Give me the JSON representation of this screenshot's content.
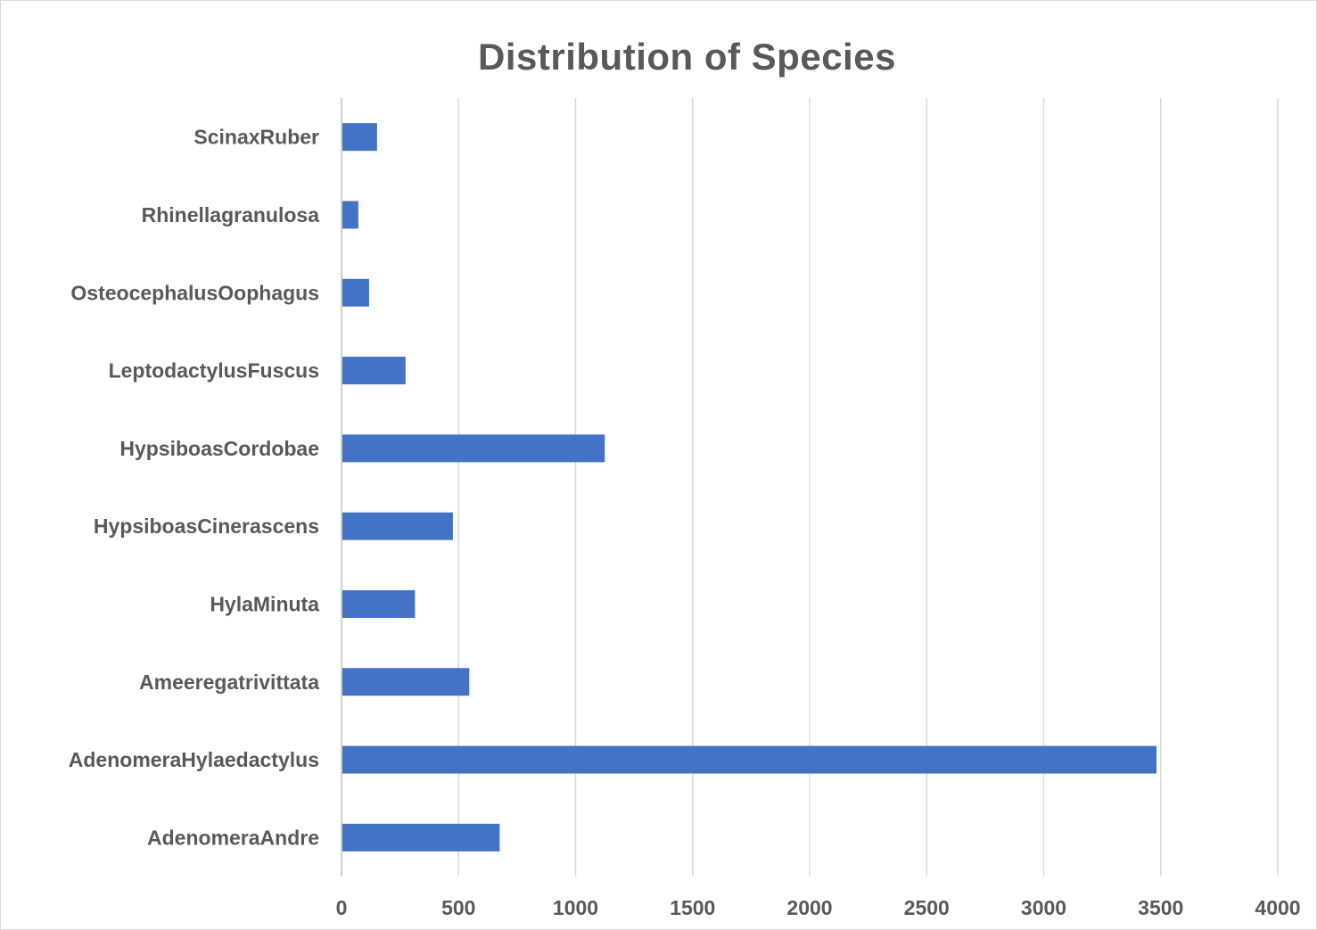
{
  "chart_data": {
    "type": "bar",
    "orientation": "horizontal",
    "title": "Distribution of Species",
    "xlabel": "",
    "ylabel": "",
    "categories": [
      "AdenomeraAndre",
      "AdenomeraHylaedactylus",
      "Ameeregatrivittata",
      "HylaMinuta",
      "HypsiboasCinerascens",
      "HypsiboasCordobae",
      "LeptodactylusFuscus",
      "OsteocephalusOophagus",
      "Rhinellagranulosa",
      "ScinaxRuber"
    ],
    "values": [
      672,
      3478,
      542,
      310,
      472,
      1121,
      270,
      114,
      68,
      148
    ],
    "xlim": [
      0,
      4000
    ],
    "xticks": [
      "0",
      "500",
      "1000",
      "1500",
      "2000",
      "2500",
      "3000",
      "3500",
      "4000"
    ],
    "grid": true,
    "legend": "none",
    "bar_color": "#4472c4"
  }
}
